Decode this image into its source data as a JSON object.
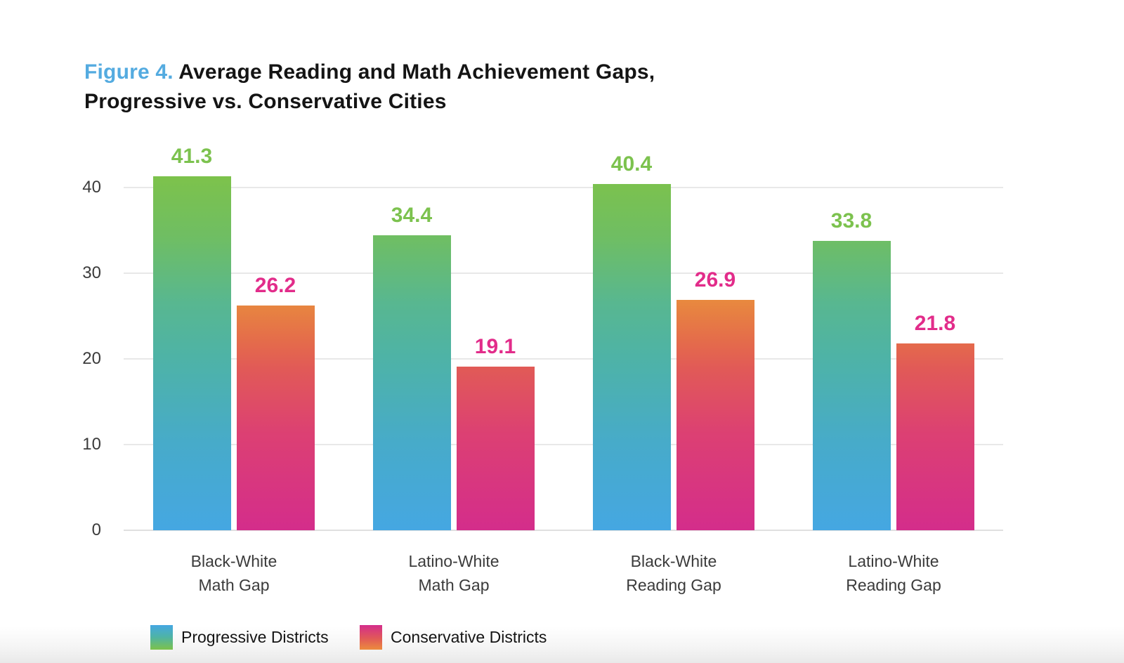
{
  "figure": {
    "label": "Figure 4.",
    "title_line1": " Average Reading and Math Achievement Gaps,",
    "title_line2": "Progressive vs. Conservative Cities"
  },
  "chart_data": {
    "type": "bar",
    "categories": [
      [
        "Black-White",
        "Math Gap"
      ],
      [
        "Latino-White",
        "Math Gap"
      ],
      [
        "Black-White",
        "Reading Gap"
      ],
      [
        "Latino-White",
        "Reading Gap"
      ]
    ],
    "series": [
      {
        "name": "Progressive Districts",
        "values": [
          41.3,
          34.4,
          40.4,
          33.8
        ]
      },
      {
        "name": "Conservative Districts",
        "values": [
          26.2,
          19.1,
          26.9,
          21.8
        ]
      }
    ],
    "title": "Figure 4. Average Reading and Math Achievement Gaps, Progressive vs. Conservative Cities",
    "xlabel": "",
    "ylabel": "",
    "ylim": [
      0,
      45
    ],
    "yticks": [
      0,
      10,
      20,
      30,
      40
    ],
    "grid": true,
    "value_labels": true,
    "legend_position": "bottom"
  },
  "colors": {
    "title_accent_blue": "#54abe0",
    "progressive_gradient_top_green": "#7dc24b",
    "progressive_gradient_bottom_blue": "#45a7e2",
    "conservative_gradient_top_orange": "#e88a3e",
    "conservative_gradient_bottom_magenta": "#d42d8b",
    "progressive_value_label": "#7cc24e",
    "conservative_value_label": "#e22c8a",
    "axis_text": "#3b3b3b",
    "gridline": "#e8e8e8"
  }
}
